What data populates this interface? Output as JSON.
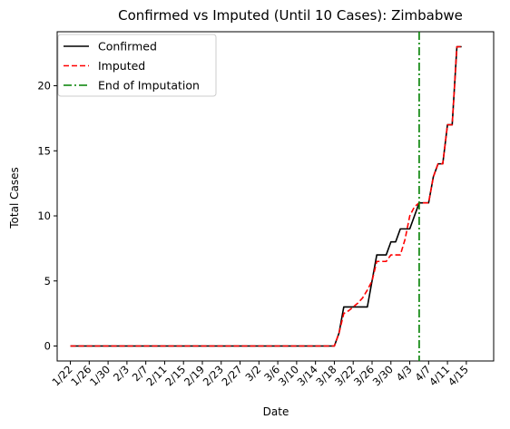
{
  "chart_data": {
    "type": "line",
    "title": "Confirmed vs Imputed (Until 10 Cases): Zimbabwe",
    "xlabel": "Date",
    "ylabel": "Total Cases",
    "x_tick_labels": [
      "1/22",
      "1/26",
      "1/30",
      "2/3",
      "2/7",
      "2/11",
      "2/15",
      "2/19",
      "2/23",
      "2/27",
      "3/2",
      "3/6",
      "3/10",
      "3/14",
      "3/18",
      "3/22",
      "3/26",
      "3/30",
      "4/3",
      "4/7",
      "4/11",
      "4/15"
    ],
    "y_tick_labels": [
      "0",
      "5",
      "10",
      "15",
      "20"
    ],
    "xlim": [
      -2.8,
      89.8
    ],
    "ylim": [
      -1.15,
      24.15
    ],
    "legend_position": "upper left",
    "series": [
      {
        "name": "Confirmed",
        "color": "#000000",
        "style": "solid",
        "points": [
          [
            0,
            0
          ],
          [
            56,
            0
          ],
          [
            57,
            1
          ],
          [
            58,
            3
          ],
          [
            63,
            3
          ],
          [
            64,
            5
          ],
          [
            65,
            7
          ],
          [
            67,
            7
          ],
          [
            68,
            8
          ],
          [
            69,
            8
          ],
          [
            70,
            9
          ],
          [
            72,
            9
          ],
          [
            73,
            10
          ],
          [
            74,
            11
          ],
          [
            76,
            11
          ],
          [
            77,
            13
          ],
          [
            78,
            14
          ],
          [
            79,
            14
          ],
          [
            80,
            17
          ],
          [
            81,
            17
          ],
          [
            82,
            23
          ],
          [
            83,
            23
          ]
        ]
      },
      {
        "name": "Imputed",
        "color": "#ff0000",
        "style": "dashed",
        "points": [
          [
            0,
            0
          ],
          [
            56,
            0
          ],
          [
            57,
            1
          ],
          [
            58,
            2.5
          ],
          [
            59,
            2.7
          ],
          [
            60,
            3
          ],
          [
            61,
            3.3
          ],
          [
            62,
            3.7
          ],
          [
            63,
            4.3
          ],
          [
            64,
            5
          ],
          [
            65,
            6.5
          ],
          [
            66,
            6.5
          ],
          [
            67,
            6.5
          ],
          [
            68,
            7
          ],
          [
            69,
            7
          ],
          [
            70,
            7
          ],
          [
            71,
            8.2
          ],
          [
            72,
            10
          ],
          [
            73,
            10.7
          ],
          [
            74,
            11
          ],
          [
            76,
            11
          ],
          [
            77,
            13
          ],
          [
            78,
            14
          ],
          [
            79,
            14
          ],
          [
            80,
            17
          ],
          [
            81,
            17
          ],
          [
            82,
            23
          ],
          [
            83,
            23
          ]
        ]
      },
      {
        "name": "End of Imputation",
        "color": "#008000",
        "style": "dashdot",
        "vertical_x": 74
      }
    ]
  }
}
